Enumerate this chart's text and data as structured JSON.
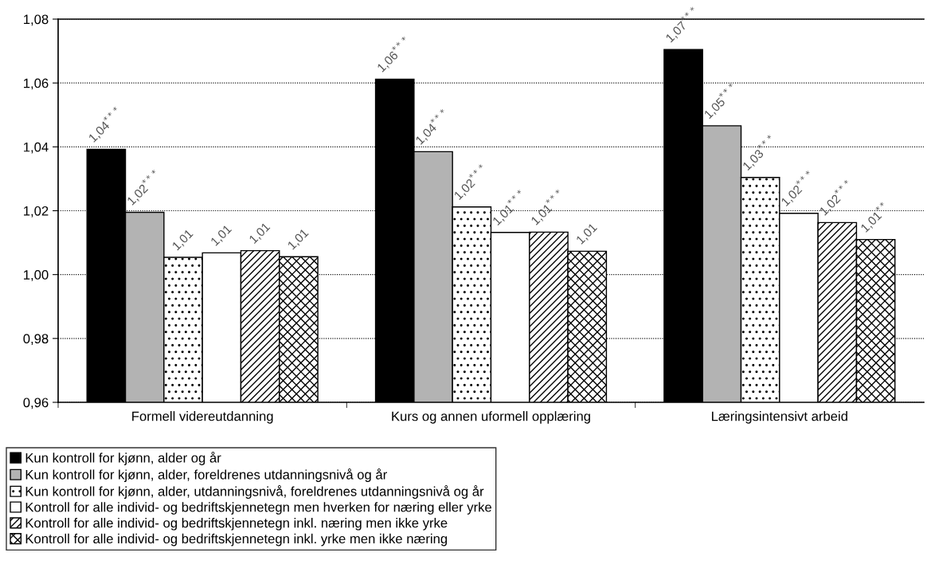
{
  "chart_data": {
    "type": "bar",
    "categories": [
      "Formell videreutdanning",
      "Kurs og annen uformell opplæring",
      "Læringsintensivt arbeid"
    ],
    "series": [
      {
        "name": "Kun kontroll for kjønn, alder og år",
        "color": "#000000",
        "values": [
          1.0392,
          1.0612,
          1.0705
        ],
        "value_labels": [
          "1,04$^{***}$",
          "1,06$^{***}$",
          "1,07$^{***}$"
        ]
      },
      {
        "name": "Kun kontroll for kjønn, alder, foreldrenes utdanningsnivå og år",
        "color": "#b3b3b3",
        "values": [
          1.0195,
          1.0385,
          1.0466
        ],
        "value_labels": [
          "1,02$^{***}$",
          "1,04$^{***}$",
          "1,05$^{***}$"
        ]
      },
      {
        "name": "Kun kontroll for kjønn, alder, utdanningsnivå, foreldrenes utdanningsnivå og år",
        "color": "#ffffff",
        "values": [
          1.0054,
          1.0212,
          1.0304
        ],
        "value_labels": [
          "1,01",
          "1,02$^{***}$",
          "1,03$^{***}$"
        ]
      },
      {
        "name": "Kontroll for alle individ- og bedriftskjennetegn men hverken for næring eller yrke",
        "color": "#ffffff",
        "values": [
          1.0068,
          1.0132,
          1.0192
        ],
        "value_labels": [
          "1,01",
          "1,01$^{***}$",
          "1,02$^{***}$"
        ]
      },
      {
        "name": "Kontroll for alle individ- og bedriftskjennetegn inkl. næring men ikke yrke",
        "color": "#ffffff",
        "values": [
          1.0075,
          1.0133,
          1.0163
        ],
        "value_labels": [
          "1,01",
          "1,01$^{***}$",
          "1,02$^{***}$"
        ]
      },
      {
        "name": "Kontroll for alle individ- og bedriftskjennetegn inkl. yrke men ikke næring",
        "color": "#ffffff",
        "values": [
          1.0056,
          1.0073,
          1.011
        ],
        "value_labels": [
          "1,01",
          "1,01",
          "1,01$^{**}$"
        ]
      }
    ],
    "ylim": [
      0.96,
      1.08
    ],
    "yticks": [
      {
        "value": 0.96,
        "label": "0,96"
      },
      {
        "value": 0.98,
        "label": "0,98"
      },
      {
        "value": 1.0,
        "label": "1,00"
      },
      {
        "value": 1.02,
        "label": "1,02"
      },
      {
        "value": 1.04,
        "label": "1,04"
      },
      {
        "value": 1.06,
        "label": "1,06"
      },
      {
        "value": 1.08,
        "label": "1,08"
      }
    ],
    "grid": "y",
    "legend": "bottom"
  }
}
